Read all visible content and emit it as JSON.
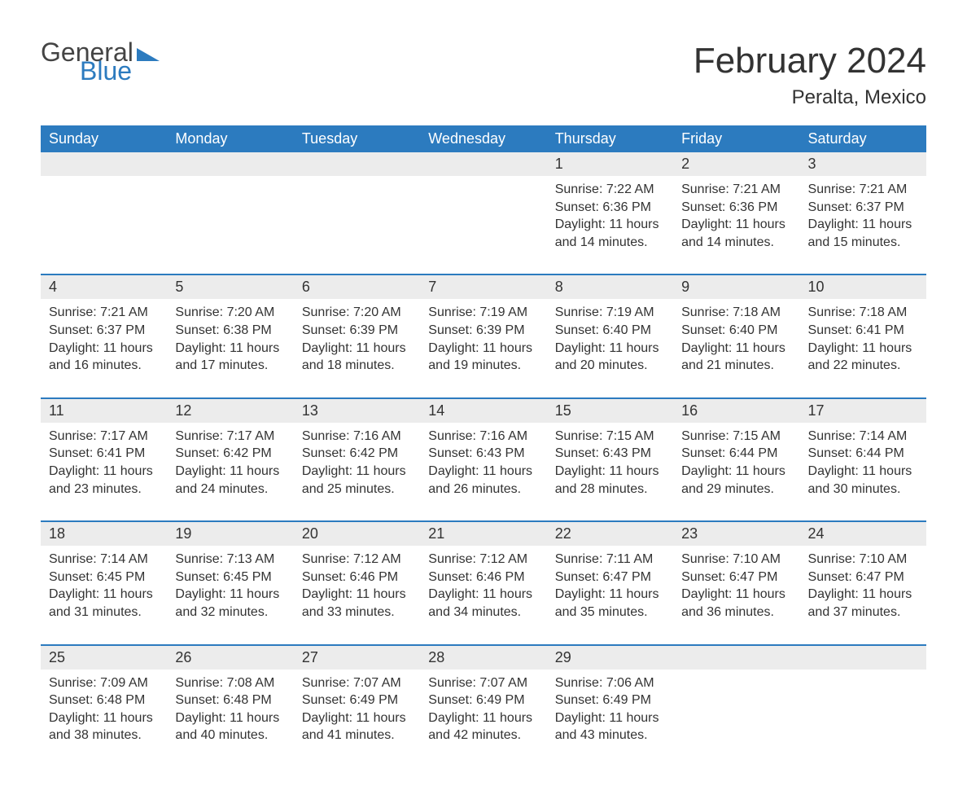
{
  "logo": {
    "general": "General",
    "blue": "Blue"
  },
  "title": "February 2024",
  "location": "Peralta, Mexico",
  "colors": {
    "theme": "#2c7bbf",
    "daynum_bg": "#ececec",
    "text": "#333333",
    "page_bg": "#ffffff"
  },
  "calendar": {
    "days_of_week": [
      "Sunday",
      "Monday",
      "Tuesday",
      "Wednesday",
      "Thursday",
      "Friday",
      "Saturday"
    ],
    "weeks": [
      [
        null,
        null,
        null,
        null,
        {
          "num": "1",
          "sunrise": "Sunrise: 7:22 AM",
          "sunset": "Sunset: 6:36 PM",
          "daylight": "Daylight: 11 hours and 14 minutes."
        },
        {
          "num": "2",
          "sunrise": "Sunrise: 7:21 AM",
          "sunset": "Sunset: 6:36 PM",
          "daylight": "Daylight: 11 hours and 14 minutes."
        },
        {
          "num": "3",
          "sunrise": "Sunrise: 7:21 AM",
          "sunset": "Sunset: 6:37 PM",
          "daylight": "Daylight: 11 hours and 15 minutes."
        }
      ],
      [
        {
          "num": "4",
          "sunrise": "Sunrise: 7:21 AM",
          "sunset": "Sunset: 6:37 PM",
          "daylight": "Daylight: 11 hours and 16 minutes."
        },
        {
          "num": "5",
          "sunrise": "Sunrise: 7:20 AM",
          "sunset": "Sunset: 6:38 PM",
          "daylight": "Daylight: 11 hours and 17 minutes."
        },
        {
          "num": "6",
          "sunrise": "Sunrise: 7:20 AM",
          "sunset": "Sunset: 6:39 PM",
          "daylight": "Daylight: 11 hours and 18 minutes."
        },
        {
          "num": "7",
          "sunrise": "Sunrise: 7:19 AM",
          "sunset": "Sunset: 6:39 PM",
          "daylight": "Daylight: 11 hours and 19 minutes."
        },
        {
          "num": "8",
          "sunrise": "Sunrise: 7:19 AM",
          "sunset": "Sunset: 6:40 PM",
          "daylight": "Daylight: 11 hours and 20 minutes."
        },
        {
          "num": "9",
          "sunrise": "Sunrise: 7:18 AM",
          "sunset": "Sunset: 6:40 PM",
          "daylight": "Daylight: 11 hours and 21 minutes."
        },
        {
          "num": "10",
          "sunrise": "Sunrise: 7:18 AM",
          "sunset": "Sunset: 6:41 PM",
          "daylight": "Daylight: 11 hours and 22 minutes."
        }
      ],
      [
        {
          "num": "11",
          "sunrise": "Sunrise: 7:17 AM",
          "sunset": "Sunset: 6:41 PM",
          "daylight": "Daylight: 11 hours and 23 minutes."
        },
        {
          "num": "12",
          "sunrise": "Sunrise: 7:17 AM",
          "sunset": "Sunset: 6:42 PM",
          "daylight": "Daylight: 11 hours and 24 minutes."
        },
        {
          "num": "13",
          "sunrise": "Sunrise: 7:16 AM",
          "sunset": "Sunset: 6:42 PM",
          "daylight": "Daylight: 11 hours and 25 minutes."
        },
        {
          "num": "14",
          "sunrise": "Sunrise: 7:16 AM",
          "sunset": "Sunset: 6:43 PM",
          "daylight": "Daylight: 11 hours and 26 minutes."
        },
        {
          "num": "15",
          "sunrise": "Sunrise: 7:15 AM",
          "sunset": "Sunset: 6:43 PM",
          "daylight": "Daylight: 11 hours and 28 minutes."
        },
        {
          "num": "16",
          "sunrise": "Sunrise: 7:15 AM",
          "sunset": "Sunset: 6:44 PM",
          "daylight": "Daylight: 11 hours and 29 minutes."
        },
        {
          "num": "17",
          "sunrise": "Sunrise: 7:14 AM",
          "sunset": "Sunset: 6:44 PM",
          "daylight": "Daylight: 11 hours and 30 minutes."
        }
      ],
      [
        {
          "num": "18",
          "sunrise": "Sunrise: 7:14 AM",
          "sunset": "Sunset: 6:45 PM",
          "daylight": "Daylight: 11 hours and 31 minutes."
        },
        {
          "num": "19",
          "sunrise": "Sunrise: 7:13 AM",
          "sunset": "Sunset: 6:45 PM",
          "daylight": "Daylight: 11 hours and 32 minutes."
        },
        {
          "num": "20",
          "sunrise": "Sunrise: 7:12 AM",
          "sunset": "Sunset: 6:46 PM",
          "daylight": "Daylight: 11 hours and 33 minutes."
        },
        {
          "num": "21",
          "sunrise": "Sunrise: 7:12 AM",
          "sunset": "Sunset: 6:46 PM",
          "daylight": "Daylight: 11 hours and 34 minutes."
        },
        {
          "num": "22",
          "sunrise": "Sunrise: 7:11 AM",
          "sunset": "Sunset: 6:47 PM",
          "daylight": "Daylight: 11 hours and 35 minutes."
        },
        {
          "num": "23",
          "sunrise": "Sunrise: 7:10 AM",
          "sunset": "Sunset: 6:47 PM",
          "daylight": "Daylight: 11 hours and 36 minutes."
        },
        {
          "num": "24",
          "sunrise": "Sunrise: 7:10 AM",
          "sunset": "Sunset: 6:47 PM",
          "daylight": "Daylight: 11 hours and 37 minutes."
        }
      ],
      [
        {
          "num": "25",
          "sunrise": "Sunrise: 7:09 AM",
          "sunset": "Sunset: 6:48 PM",
          "daylight": "Daylight: 11 hours and 38 minutes."
        },
        {
          "num": "26",
          "sunrise": "Sunrise: 7:08 AM",
          "sunset": "Sunset: 6:48 PM",
          "daylight": "Daylight: 11 hours and 40 minutes."
        },
        {
          "num": "27",
          "sunrise": "Sunrise: 7:07 AM",
          "sunset": "Sunset: 6:49 PM",
          "daylight": "Daylight: 11 hours and 41 minutes."
        },
        {
          "num": "28",
          "sunrise": "Sunrise: 7:07 AM",
          "sunset": "Sunset: 6:49 PM",
          "daylight": "Daylight: 11 hours and 42 minutes."
        },
        {
          "num": "29",
          "sunrise": "Sunrise: 7:06 AM",
          "sunset": "Sunset: 6:49 PM",
          "daylight": "Daylight: 11 hours and 43 minutes."
        },
        null,
        null
      ]
    ]
  }
}
